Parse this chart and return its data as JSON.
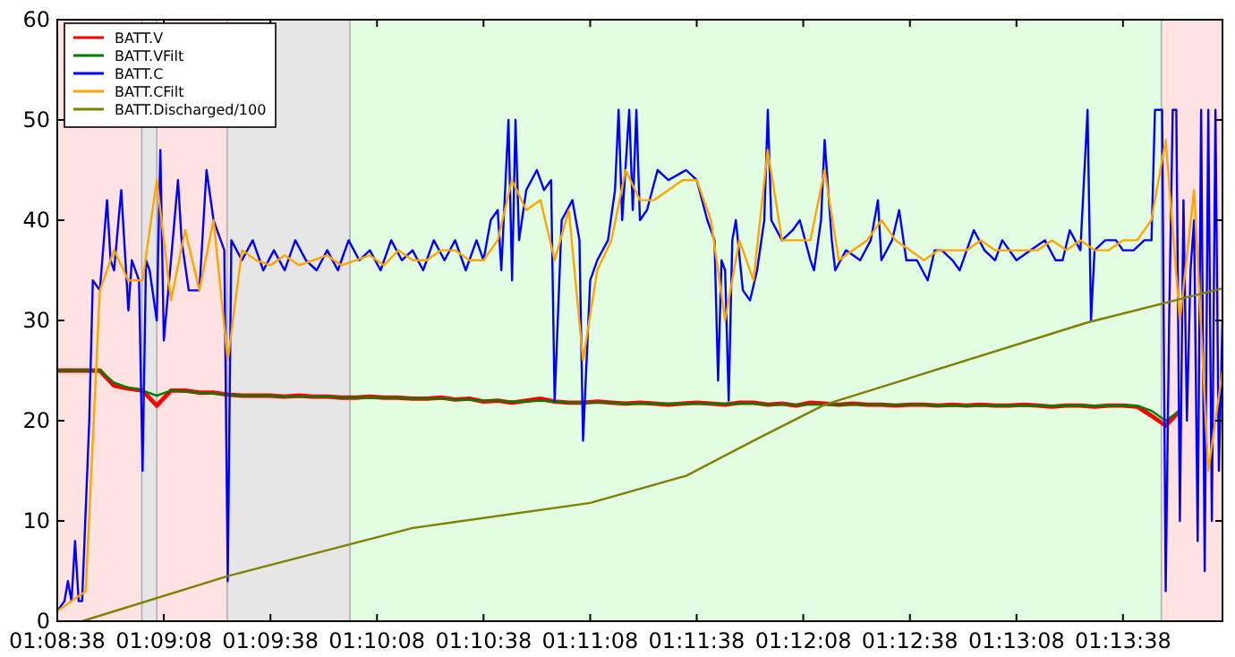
{
  "chart_data": {
    "type": "line",
    "legend": "top left",
    "ylim": [
      0,
      60
    ],
    "yticks": [
      0,
      10,
      20,
      30,
      40,
      50,
      60
    ],
    "xlim": [
      1.14389,
      1.235
    ],
    "xticks": [
      {
        "value": 1.14389,
        "label": "01:08:38"
      },
      {
        "value": 1.15222,
        "label": "01:09:08"
      },
      {
        "value": 1.16056,
        "label": "01:09:38"
      },
      {
        "value": 1.16889,
        "label": "01:10:08"
      },
      {
        "value": 1.17722,
        "label": "01:10:38"
      },
      {
        "value": 1.18556,
        "label": "01:11:08"
      },
      {
        "value": 1.19389,
        "label": "01:11:38"
      },
      {
        "value": 1.20222,
        "label": "01:12:08"
      },
      {
        "value": 1.21056,
        "label": "01:12:38"
      },
      {
        "value": 1.21889,
        "label": "01:13:08"
      },
      {
        "value": 1.22722,
        "label": "01:13:38"
      }
    ],
    "bands": [
      {
        "axis": "x",
        "from": 1.14389,
        "to": 1.1505,
        "color": "#ffe2e2"
      },
      {
        "axis": "x",
        "from": 1.1505,
        "to": 1.15167,
        "color": "#e6e6e6"
      },
      {
        "axis": "x",
        "from": 1.15167,
        "to": 1.15717,
        "color": "#ffe2e2"
      },
      {
        "axis": "x",
        "from": 1.15717,
        "to": 1.16678,
        "color": "#e6e6e6"
      },
      {
        "axis": "x",
        "from": 1.16678,
        "to": 1.23022,
        "color": "#e2fde2"
      },
      {
        "axis": "x",
        "from": 1.23022,
        "to": 1.235,
        "color": "#ffe2e2"
      }
    ],
    "x": [
      1.14389,
      1.145,
      1.14611,
      1.14722,
      1.14833,
      1.14944,
      1.15056,
      1.15167,
      1.15278,
      1.15389,
      1.155,
      1.15611,
      1.15722,
      1.15833,
      1.15944,
      1.16056,
      1.16167,
      1.16278,
      1.16389,
      1.165,
      1.16611,
      1.16722,
      1.16833,
      1.16944,
      1.17056,
      1.17167,
      1.17278,
      1.17389,
      1.175,
      1.17611,
      1.17722,
      1.17833,
      1.17944,
      1.18056,
      1.18167,
      1.18278,
      1.18389,
      1.185,
      1.18611,
      1.18722,
      1.18833,
      1.18944,
      1.19056,
      1.19167,
      1.19278,
      1.19389,
      1.195,
      1.19611,
      1.19722,
      1.19833,
      1.19944,
      1.20056,
      1.20167,
      1.20278,
      1.20389,
      1.205,
      1.20611,
      1.20722,
      1.20833,
      1.20944,
      1.21056,
      1.21167,
      1.21278,
      1.21389,
      1.215,
      1.21611,
      1.21722,
      1.21833,
      1.21944,
      1.22056,
      1.22167,
      1.22278,
      1.22389,
      1.225,
      1.22611,
      1.22722,
      1.22833,
      1.22944,
      1.23056,
      1.23167,
      1.23278,
      1.23389,
      1.235
    ],
    "series": [
      {
        "name": "BATT.V",
        "color": "#ff0000",
        "values": [
          25,
          25,
          25,
          25,
          23.5,
          23.2,
          23,
          21.5,
          23,
          23,
          22.8,
          22.8,
          22.6,
          22.5,
          22.5,
          22.5,
          22.4,
          22.5,
          22.4,
          22.4,
          22.3,
          22.3,
          22.4,
          22.3,
          22.3,
          22.2,
          22.2,
          22.3,
          22.1,
          22.2,
          21.9,
          22,
          21.8,
          22,
          22.2,
          21.9,
          21.8,
          21.8,
          21.9,
          21.8,
          21.7,
          21.8,
          21.7,
          21.6,
          21.7,
          21.8,
          21.7,
          21.6,
          21.8,
          21.8,
          21.6,
          21.7,
          21.5,
          21.8,
          21.7,
          21.6,
          21.7,
          21.6,
          21.6,
          21.5,
          21.6,
          21.6,
          21.5,
          21.6,
          21.5,
          21.6,
          21.5,
          21.5,
          21.6,
          21.5,
          21.4,
          21.5,
          21.5,
          21.4,
          21.5,
          21.5,
          21.4,
          20.5,
          19.5,
          21,
          null,
          null,
          null
        ]
      },
      {
        "name": "BATT.VFilt",
        "color": "#008000",
        "values": [
          25,
          25,
          25,
          25,
          23.8,
          23.3,
          23,
          22.5,
          23,
          22.9,
          22.8,
          22.7,
          22.6,
          22.5,
          22.5,
          22.5,
          22.4,
          22.4,
          22.4,
          22.4,
          22.3,
          22.3,
          22.3,
          22.3,
          22.3,
          22.2,
          22.2,
          22.2,
          22.1,
          22.1,
          22,
          22,
          21.9,
          21.9,
          22,
          21.9,
          21.8,
          21.8,
          21.8,
          21.8,
          21.7,
          21.7,
          21.7,
          21.7,
          21.7,
          21.7,
          21.7,
          21.7,
          21.7,
          21.7,
          21.6,
          21.6,
          21.6,
          21.6,
          21.6,
          21.6,
          21.6,
          21.6,
          21.6,
          21.6,
          21.6,
          21.6,
          21.5,
          21.5,
          21.5,
          21.5,
          21.5,
          21.5,
          21.5,
          21.5,
          21.5,
          21.5,
          21.5,
          21.5,
          21.5,
          21.5,
          21.5,
          21,
          20,
          21,
          null,
          null,
          null
        ]
      },
      {
        "name": "BATT.C",
        "color": "#0000ff",
        "x": [
          1.14389,
          1.14445,
          1.14472,
          1.145,
          1.14528,
          1.14556,
          1.14583,
          1.14639,
          1.14667,
          1.14722,
          1.14778,
          1.14806,
          1.14833,
          1.14889,
          1.14945,
          1.14972,
          1.15028,
          1.15056,
          1.15083,
          1.15111,
          1.15167,
          1.15195,
          1.15222,
          1.15278,
          1.15333,
          1.15361,
          1.15417,
          1.155,
          1.15556,
          1.15611,
          1.15667,
          1.15695,
          1.15722,
          1.1575,
          1.15833,
          1.15917,
          1.16,
          1.16083,
          1.16167,
          1.1625,
          1.16333,
          1.16417,
          1.165,
          1.16583,
          1.16667,
          1.1675,
          1.16833,
          1.16917,
          1.17,
          1.17083,
          1.17167,
          1.1725,
          1.17333,
          1.17417,
          1.175,
          1.17583,
          1.17667,
          1.17722,
          1.17778,
          1.17833,
          1.17861,
          1.17917,
          1.17945,
          1.17972,
          1.18,
          1.18056,
          1.18139,
          1.18195,
          1.1825,
          1.18278,
          1.18333,
          1.18417,
          1.18472,
          1.185,
          1.18556,
          1.18611,
          1.18695,
          1.1875,
          1.18778,
          1.18806,
          1.18861,
          1.18889,
          1.18917,
          1.18945,
          1.19,
          1.19083,
          1.19167,
          1.19306,
          1.19389,
          1.19472,
          1.19528,
          1.19556,
          1.19583,
          1.19611,
          1.19639,
          1.19667,
          1.19695,
          1.1975,
          1.19806,
          1.19861,
          1.19917,
          1.19945,
          1.19972,
          1.20056,
          1.20139,
          1.20195,
          1.20278,
          1.20306,
          1.20361,
          1.20389,
          1.20445,
          1.20472,
          1.20556,
          1.20667,
          1.2075,
          1.20806,
          1.20833,
          1.20917,
          1.20972,
          1.21028,
          1.21111,
          1.21195,
          1.2125,
          1.21306,
          1.21389,
          1.21445,
          1.215,
          1.21556,
          1.21639,
          1.21722,
          1.21778,
          1.21889,
          1.22,
          1.22111,
          1.22195,
          1.2225,
          1.22306,
          1.22389,
          1.22445,
          1.22472,
          1.225,
          1.22583,
          1.22667,
          1.22722,
          1.22806,
          1.22889,
          1.22945,
          1.22972,
          1.23028,
          1.23056,
          1.23083,
          1.23111,
          1.23139,
          1.23167,
          1.23195,
          1.23222,
          1.2325,
          1.23278,
          1.23306,
          1.23333,
          1.23361,
          1.23389,
          1.23417,
          1.23445,
          1.23472,
          1.235
        ],
        "values": [
          1,
          2,
          4,
          2,
          8,
          2,
          2,
          20,
          34,
          33,
          42,
          36,
          35,
          43,
          31,
          36,
          34,
          15,
          36,
          35,
          30,
          47,
          28,
          36,
          44,
          38,
          33,
          33,
          45,
          40,
          38,
          37,
          4,
          38,
          36,
          38,
          35,
          37,
          35,
          38,
          36,
          35,
          37,
          35,
          38,
          36,
          37,
          35,
          38,
          36,
          37,
          35,
          38,
          36,
          38,
          35,
          38,
          36,
          40,
          41,
          35,
          50,
          34,
          50,
          38,
          43,
          45,
          43,
          44,
          22,
          40,
          42,
          38,
          18,
          34,
          36,
          38,
          43,
          51,
          40,
          51,
          41,
          51,
          40,
          41,
          45,
          44,
          45,
          44,
          40,
          38,
          24,
          36,
          35,
          22,
          38,
          40,
          33,
          32,
          35,
          40,
          51,
          40,
          38,
          39,
          40,
          36,
          35,
          40,
          48,
          38,
          35,
          37,
          36,
          38,
          42,
          36,
          38,
          41,
          36,
          36,
          34,
          37,
          37,
          36,
          35,
          37,
          39,
          37,
          36,
          38,
          36,
          37,
          38,
          36,
          36,
          39,
          37,
          51,
          30,
          37,
          38,
          38,
          37,
          37,
          38,
          38,
          51,
          51,
          3,
          30,
          51,
          51,
          10,
          42,
          20,
          35,
          40,
          8,
          51,
          5,
          51,
          10,
          51,
          15,
          30
        ]
      },
      {
        "name": "BATT.CFilt",
        "color": "#ffa500",
        "values": [
          1,
          2,
          3,
          33,
          37,
          34,
          34,
          44,
          32,
          39,
          33,
          40,
          26,
          37,
          36,
          35.5,
          36.5,
          35.5,
          36,
          36.5,
          35.5,
          36,
          36.5,
          35.5,
          37,
          36,
          36,
          37,
          37,
          36,
          36,
          38,
          44,
          41,
          42,
          36,
          41,
          26,
          35,
          38,
          45,
          42,
          42,
          43,
          44,
          44,
          40,
          30,
          38,
          34,
          47,
          38,
          38,
          38,
          45,
          36,
          37,
          38,
          40,
          38,
          37,
          36,
          37,
          37,
          37,
          38,
          37,
          37,
          37,
          37,
          38,
          37,
          38,
          37,
          37,
          38,
          38,
          40,
          48,
          30,
          43,
          15,
          25
        ]
      },
      {
        "name": "BATT.Discharged/100",
        "color": "#808000",
        "x": [
          1.14583,
          1.15722,
          1.17167,
          1.18556,
          1.19306,
          1.19833,
          1.20389,
          1.22445,
          1.235
        ],
        "values": [
          0,
          4.5,
          9.3,
          11.8,
          14.5,
          18,
          21.6,
          29.8,
          33.2
        ]
      }
    ]
  }
}
